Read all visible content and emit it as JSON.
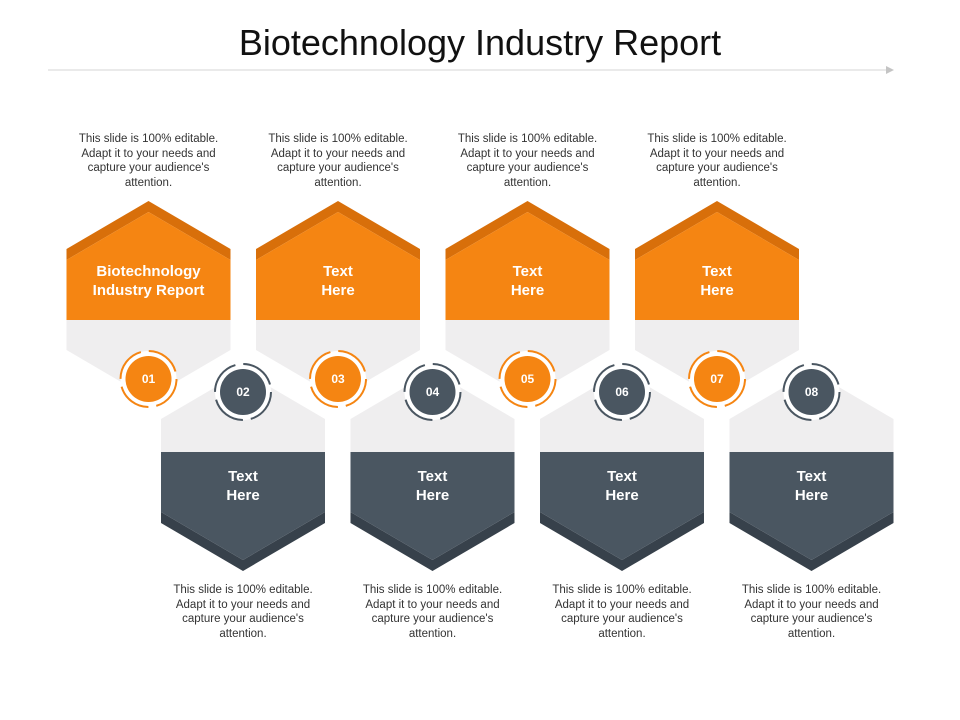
{
  "title": "Biotechnology Industry Report",
  "colors": {
    "orange": "#F58512",
    "orange_dark": "#D86F0A",
    "slate": "#4A5661",
    "slate_dark": "#37414B",
    "light": "#EFEEEF"
  },
  "steps": [
    {
      "number": "01",
      "label": "Biotechnology Industry Report",
      "description": "This slide is 100% editable. Adapt it to your needs and capture your audience's attention.",
      "color": "orange"
    },
    {
      "number": "02",
      "label": "Text Here",
      "description": "This slide is 100% editable. Adapt it to your needs and capture your audience's attention.",
      "color": "slate"
    },
    {
      "number": "03",
      "label": "Text Here",
      "description": "This slide is 100% editable. Adapt it to your needs and capture your audience's attention.",
      "color": "orange"
    },
    {
      "number": "04",
      "label": "Text Here",
      "description": "This slide is 100% editable. Adapt it to your needs and capture your audience's attention.",
      "color": "slate"
    },
    {
      "number": "05",
      "label": "Text Here",
      "description": "This slide is 100% editable. Adapt it to your needs and capture your audience's attention.",
      "color": "orange"
    },
    {
      "number": "06",
      "label": "Text Here",
      "description": "This slide is 100% editable. Adapt it to your needs and capture your audience's attention.",
      "color": "slate"
    },
    {
      "number": "07",
      "label": "Text Here",
      "description": "This slide is 100% editable. Adapt it to your needs and capture your audience's attention.",
      "color": "orange"
    },
    {
      "number": "08",
      "label": "Text Here",
      "description": "This slide is 100% editable. Adapt it to your needs and capture your audience's attention.",
      "color": "slate"
    }
  ]
}
